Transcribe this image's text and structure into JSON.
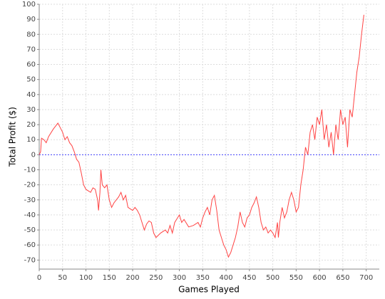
{
  "chart_data": {
    "type": "line",
    "x_label": "Games Played",
    "y_label": "Total Profit ($)",
    "x": [
      0,
      3,
      5,
      10,
      15,
      20,
      30,
      40,
      45,
      50,
      55,
      60,
      65,
      70,
      75,
      80,
      85,
      90,
      95,
      100,
      110,
      115,
      120,
      125,
      127,
      130,
      132,
      135,
      140,
      145,
      150,
      155,
      160,
      170,
      175,
      180,
      185,
      190,
      200,
      205,
      210,
      215,
      220,
      225,
      230,
      235,
      240,
      245,
      250,
      260,
      270,
      275,
      280,
      285,
      290,
      300,
      305,
      310,
      320,
      330,
      340,
      345,
      350,
      355,
      360,
      365,
      370,
      375,
      380,
      385,
      390,
      395,
      400,
      405,
      410,
      415,
      420,
      425,
      430,
      435,
      440,
      445,
      450,
      455,
      460,
      465,
      470,
      475,
      480,
      485,
      490,
      495,
      500,
      505,
      510,
      512,
      515,
      520,
      525,
      530,
      535,
      540,
      545,
      550,
      555,
      560,
      565,
      570,
      575,
      580,
      585,
      590,
      595,
      600,
      605,
      610,
      615,
      620,
      625,
      630,
      635,
      640,
      645,
      650,
      655,
      660,
      665,
      670,
      675,
      680,
      685,
      690,
      695
    ],
    "series": [
      {
        "name": "Total Profit",
        "color": "#ff4444",
        "values": [
          0,
          2,
          11,
          10,
          8,
          12,
          17,
          21,
          18,
          15,
          10,
          12,
          8,
          6,
          2,
          -3,
          -5,
          -12,
          -20,
          -23,
          -25,
          -22,
          -23,
          -30,
          -37,
          -25,
          -10,
          -20,
          -22,
          -20,
          -30,
          -35,
          -32,
          -28,
          -25,
          -30,
          -27,
          -35,
          -37,
          -35,
          -37,
          -40,
          -45,
          -50,
          -46,
          -44,
          -45,
          -52,
          -55,
          -52,
          -50,
          -52,
          -47,
          -52,
          -45,
          -40,
          -45,
          -43,
          -48,
          -47,
          -45,
          -48,
          -42,
          -38,
          -35,
          -40,
          -30,
          -27,
          -37,
          -50,
          -55,
          -60,
          -63,
          -68,
          -65,
          -60,
          -55,
          -48,
          -38,
          -45,
          -48,
          -42,
          -40,
          -35,
          -32,
          -28,
          -35,
          -45,
          -50,
          -48,
          -52,
          -50,
          -52,
          -55,
          -45,
          -55,
          -45,
          -35,
          -42,
          -38,
          -30,
          -25,
          -30,
          -38,
          -35,
          -20,
          -10,
          5,
          0,
          15,
          20,
          10,
          25,
          20,
          30,
          10,
          20,
          5,
          15,
          0,
          20,
          10,
          30,
          20,
          25,
          5,
          30,
          25,
          40,
          55,
          65,
          80,
          93
        ]
      }
    ],
    "reference_line": {
      "value": 0,
      "color": "#4444ff"
    },
    "xlim": [
      0,
      728
    ],
    "ylim": [
      -76,
      100
    ],
    "xticks": [
      0,
      50,
      100,
      150,
      200,
      250,
      300,
      350,
      400,
      450,
      500,
      550,
      600,
      650,
      700
    ],
    "yticks": [
      -70,
      -60,
      -50,
      -40,
      -30,
      -20,
      -10,
      0,
      10,
      20,
      30,
      40,
      50,
      60,
      70,
      80,
      90,
      100
    ],
    "grid": true
  }
}
